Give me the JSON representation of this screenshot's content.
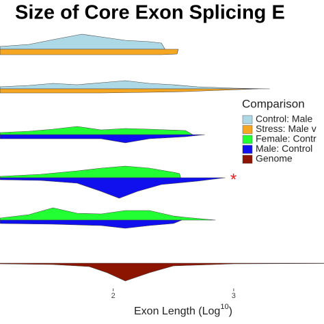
{
  "chart_data": {
    "type": "violin",
    "title": "Size of Core Exon Splicing E",
    "xlabel": {
      "text": "Exon Length  (Log",
      "sup": "10",
      "close": ")"
    },
    "xlim": [
      1.06,
      3.75
    ],
    "xticks": [
      2,
      3
    ],
    "legend_title": "Comparison",
    "legend": [
      {
        "label": "Control: Male",
        "color": "#add8e6"
      },
      {
        "label": "Stress: Male v",
        "color": "#f5a623"
      },
      {
        "label": "Female: Contr",
        "color": "#22ff33"
      },
      {
        "label": "Male: Control",
        "color": "#1010ee"
      },
      {
        "label": "Genome",
        "color": "#8b1500"
      }
    ],
    "annotation": "*",
    "rows": [
      {
        "upper": {
          "color": "#add8e6",
          "x": [
            1.06,
            1.3,
            1.5,
            1.74,
            1.9,
            2.1,
            2.3,
            2.4,
            2.43
          ],
          "values": [
            4,
            7,
            14,
            22,
            18,
            13,
            11,
            9,
            0
          ]
        },
        "lower": {
          "color": "#f5a623",
          "x": [
            1.06,
            1.5,
            1.9,
            2.2,
            2.4,
            2.53,
            2.54
          ],
          "values": [
            8,
            8,
            8,
            8,
            8,
            7,
            0
          ]
        }
      },
      {
        "upper": {
          "color": "#add8e6",
          "x": [
            1.06,
            1.3,
            1.5,
            1.7,
            1.9,
            2.1,
            2.3,
            2.5,
            2.7,
            3.0,
            3.3
          ],
          "values": [
            3,
            5,
            8,
            6,
            9,
            12,
            8,
            6,
            3,
            1,
            0
          ]
        },
        "lower": {
          "color": "#f5a623",
          "x": [
            1.06,
            1.5,
            1.9,
            2.3,
            2.6,
            2.9,
            3.2
          ],
          "values": [
            6,
            6,
            6,
            5,
            4,
            2,
            0
          ]
        }
      },
      {
        "upper": {
          "color": "#22ff33",
          "x": [
            1.06,
            1.3,
            1.5,
            1.7,
            1.9,
            2.1,
            2.3,
            2.6,
            2.66
          ],
          "values": [
            3,
            5,
            8,
            12,
            7,
            9,
            8,
            6,
            0
          ]
        },
        "lower": {
          "color": "#1010ee",
          "x": [
            1.06,
            1.5,
            1.9,
            2.1,
            2.3,
            2.6,
            2.76
          ],
          "values": [
            6,
            6,
            6,
            12,
            6,
            3,
            0
          ]
        }
      },
      {
        "upper": {
          "color": "#22ff33",
          "x": [
            1.06,
            1.4,
            1.7,
            1.9,
            2.1,
            2.3,
            2.5,
            2.55,
            2.56
          ],
          "values": [
            2,
            5,
            10,
            14,
            17,
            14,
            8,
            6,
            0
          ]
        },
        "lower": {
          "color": "#1010ee",
          "x": [
            1.06,
            1.4,
            1.7,
            1.9,
            2.05,
            2.2,
            2.4,
            2.7,
            2.93
          ],
          "values": [
            3,
            4,
            8,
            20,
            30,
            20,
            10,
            5,
            0
          ]
        }
      },
      {
        "upper": {
          "color": "#22ff33",
          "x": [
            1.06,
            1.3,
            1.5,
            1.7,
            1.9,
            2.1,
            2.3,
            2.5,
            2.6,
            2.85
          ],
          "values": [
            3,
            8,
            18,
            10,
            9,
            14,
            14,
            6,
            4,
            0
          ]
        },
        "lower": {
          "color": "#1010ee",
          "x": [
            1.06,
            1.5,
            1.9,
            2.1,
            2.3,
            2.5,
            2.57
          ],
          "values": [
            5,
            6,
            8,
            12,
            8,
            5,
            0
          ]
        }
      },
      {
        "lower": {
          "color": "#8b1500",
          "x": [
            1.06,
            1.5,
            1.8,
            1.95,
            2.1,
            2.3,
            2.5,
            3.0,
            3.75
          ],
          "values": [
            1,
            2,
            5,
            14,
            26,
            14,
            4,
            1,
            0.5
          ]
        }
      }
    ]
  }
}
